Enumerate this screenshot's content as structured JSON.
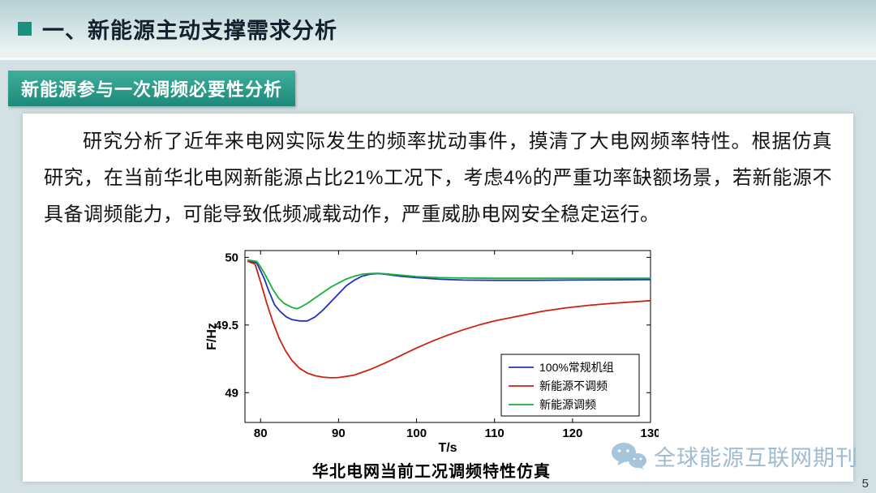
{
  "page": {
    "title": "一、新能源主动支撑需求分析",
    "page_number": "5"
  },
  "section_badge": "新能源参与一次调频必要性分析",
  "body": {
    "paragraph": "研究分析了近年来电网实际发生的频率扰动事件，摸清了大电网频率特性。根据仿真研究，在当前华北电网新能源占比21%工况下，考虑4%的严重功率缺额场景，若新能源不具备调频能力，可能导致低频减载动作，严重威胁电网安全稳定运行。"
  },
  "watermark": {
    "icon": "wechat-icon",
    "text": "全球能源互联网期刊"
  },
  "chart_data": {
    "type": "line",
    "title": "华北电网当前工况调频特性仿真",
    "xlabel": "T/s",
    "ylabel": "F/Hz",
    "xlim": [
      78,
      130
    ],
    "ylim": [
      48.78,
      50.05
    ],
    "xticks": [
      80,
      90,
      100,
      110,
      120,
      130
    ],
    "yticks": [
      49,
      49.5,
      50
    ],
    "grid": false,
    "legend_position": "lower right",
    "series": [
      {
        "name": "100%常规机组",
        "color": "#2233bb",
        "points": [
          [
            78.4,
            49.97
          ],
          [
            79.5,
            49.96
          ],
          [
            80,
            49.9
          ],
          [
            80.5,
            49.84
          ],
          [
            81,
            49.76
          ],
          [
            81.8,
            49.65
          ],
          [
            82.5,
            49.6
          ],
          [
            83.3,
            49.56
          ],
          [
            84,
            49.54
          ],
          [
            85,
            49.53
          ],
          [
            86,
            49.53
          ],
          [
            87,
            49.56
          ],
          [
            88,
            49.61
          ],
          [
            89,
            49.67
          ],
          [
            90,
            49.73
          ],
          [
            91,
            49.79
          ],
          [
            92,
            49.83
          ],
          [
            93,
            49.86
          ],
          [
            94,
            49.875
          ],
          [
            95,
            49.88
          ],
          [
            96,
            49.875
          ],
          [
            98,
            49.86
          ],
          [
            100,
            49.85
          ],
          [
            103,
            49.838
          ],
          [
            106,
            49.832
          ],
          [
            110,
            49.83
          ],
          [
            115,
            49.83
          ],
          [
            120,
            49.832
          ],
          [
            125,
            49.834
          ],
          [
            130,
            49.835
          ]
        ]
      },
      {
        "name": "新能源不调频",
        "color": "#cc2211",
        "points": [
          [
            78.4,
            49.97
          ],
          [
            79.3,
            49.95
          ],
          [
            80,
            49.82
          ],
          [
            80.8,
            49.66
          ],
          [
            81.6,
            49.52
          ],
          [
            82.4,
            49.4
          ],
          [
            83.2,
            49.31
          ],
          [
            84,
            49.24
          ],
          [
            85,
            49.18
          ],
          [
            86,
            49.145
          ],
          [
            87,
            49.125
          ],
          [
            88,
            49.115
          ],
          [
            89,
            49.11
          ],
          [
            90,
            49.112
          ],
          [
            91,
            49.12
          ],
          [
            92,
            49.13
          ],
          [
            94,
            49.17
          ],
          [
            96,
            49.22
          ],
          [
            98,
            49.275
          ],
          [
            100,
            49.33
          ],
          [
            102,
            49.38
          ],
          [
            104,
            49.425
          ],
          [
            106,
            49.465
          ],
          [
            108,
            49.5
          ],
          [
            110,
            49.53
          ],
          [
            113,
            49.565
          ],
          [
            116,
            49.6
          ],
          [
            119,
            49.625
          ],
          [
            122,
            49.645
          ],
          [
            125,
            49.66
          ],
          [
            128,
            49.672
          ],
          [
            130,
            49.68
          ]
        ]
      },
      {
        "name": "新能源调频",
        "color": "#17b13a",
        "points": [
          [
            78.4,
            49.98
          ],
          [
            79.5,
            49.97
          ],
          [
            80,
            49.93
          ],
          [
            80.7,
            49.86
          ],
          [
            81.5,
            49.77
          ],
          [
            82.3,
            49.7
          ],
          [
            83,
            49.66
          ],
          [
            84,
            49.63
          ],
          [
            84.7,
            49.62
          ],
          [
            85.4,
            49.64
          ],
          [
            86,
            49.66
          ],
          [
            87,
            49.7
          ],
          [
            88,
            49.74
          ],
          [
            89,
            49.78
          ],
          [
            90,
            49.81
          ],
          [
            91,
            49.84
          ],
          [
            92,
            49.86
          ],
          [
            93,
            49.875
          ],
          [
            94,
            49.88
          ],
          [
            95,
            49.882
          ],
          [
            96,
            49.878
          ],
          [
            98,
            49.868
          ],
          [
            100,
            49.858
          ],
          [
            103,
            49.85
          ],
          [
            106,
            49.847
          ],
          [
            110,
            49.845
          ],
          [
            115,
            49.845
          ],
          [
            120,
            49.845
          ],
          [
            125,
            49.845
          ],
          [
            130,
            49.845
          ]
        ]
      }
    ]
  }
}
